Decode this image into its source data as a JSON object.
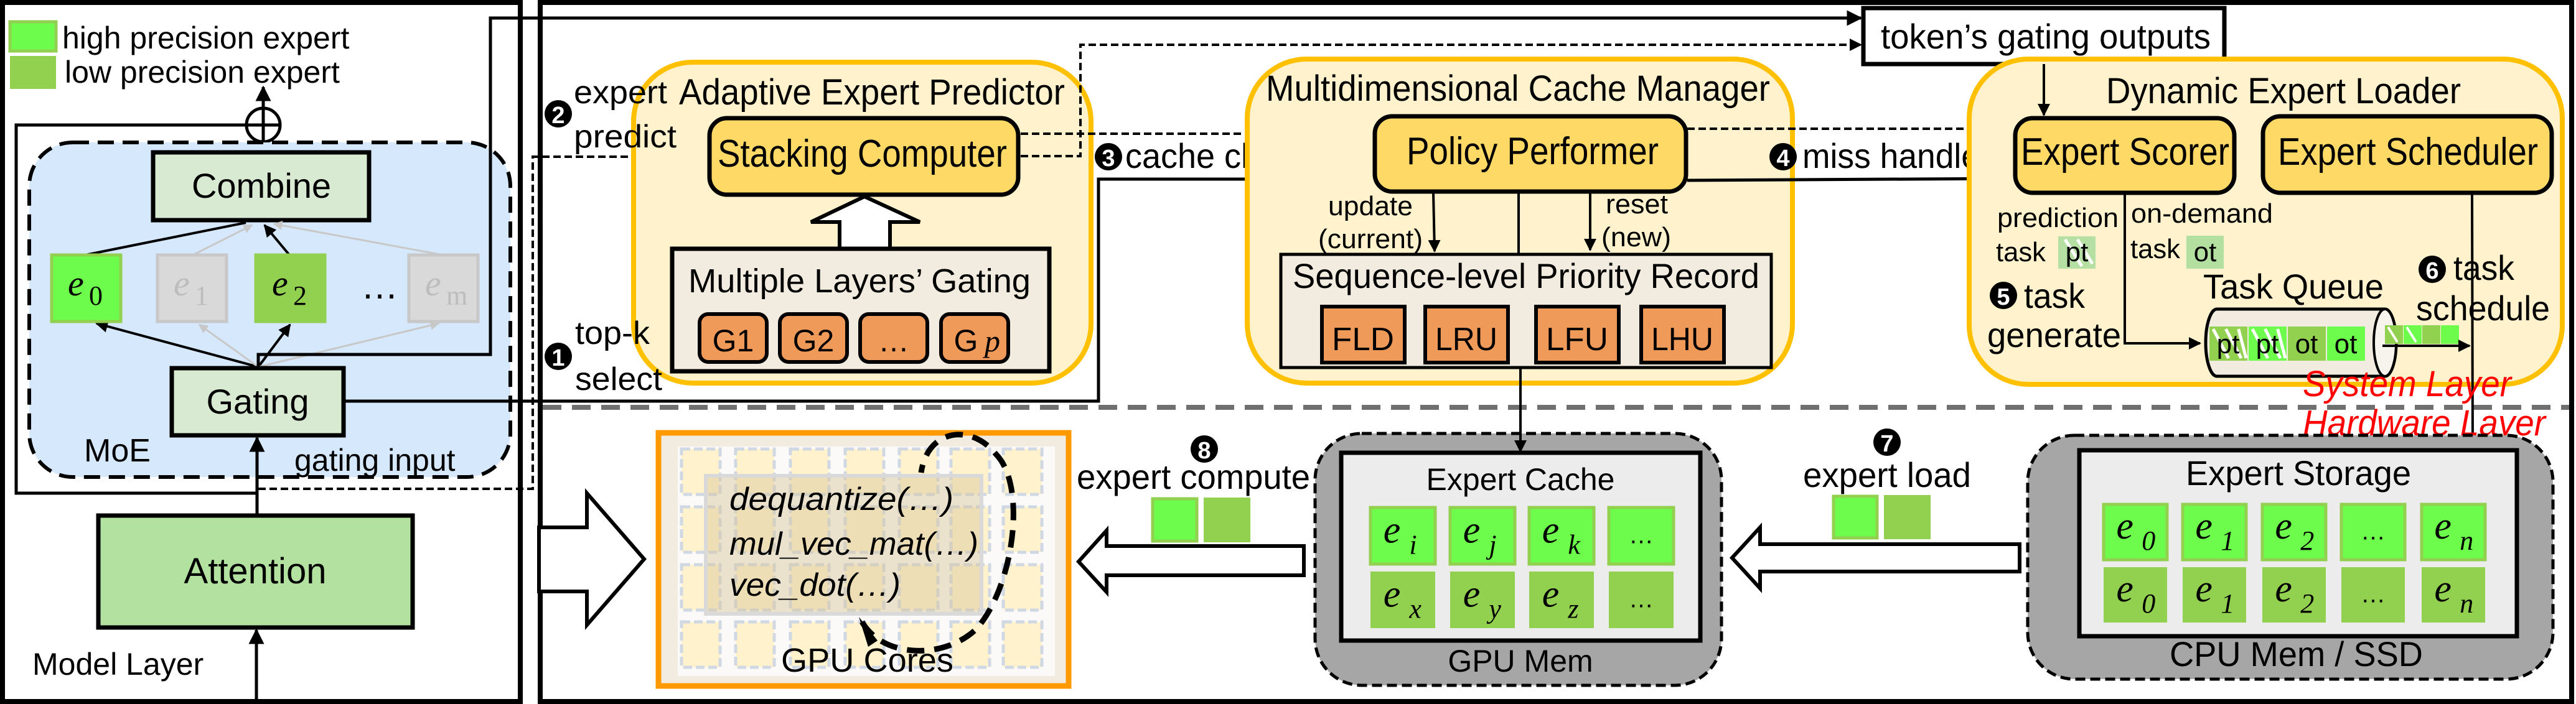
{
  "legend": {
    "high": "high precision expert",
    "low": "low precision expert"
  },
  "colors": {
    "high_precision": "#6dfc4b",
    "low_precision": "#92d050",
    "moe_fill": "#d6e8fb",
    "block_fill": "#d9ead3",
    "attention_fill": "#b3e2a0",
    "panel_fill": "#fff2cc",
    "panel_stroke": "#ffc000",
    "module_fill": "#ffd966",
    "record_fill": "#f2ece0",
    "policy_item_fill": "#f09a5a",
    "memory_fill": "#a6a6a6",
    "gpu_border": "#ff9900",
    "layer_label": "#ff0000"
  },
  "model_layer": {
    "title": "Model Layer",
    "moe": "MoE",
    "combine": "Combine",
    "gating": "Gating",
    "attention": "Attention",
    "gating_input": "gating input",
    "experts": [
      {
        "base": "e",
        "sub": "0",
        "state": "high"
      },
      {
        "base": "e",
        "sub": "1",
        "state": "inactive"
      },
      {
        "base": "e",
        "sub": "2",
        "state": "low"
      },
      {
        "base": "…",
        "sub": "",
        "state": "ellipsis"
      },
      {
        "base": "e",
        "sub": "m",
        "state": "inactive"
      }
    ]
  },
  "token_gating_outputs": "token’s gating outputs",
  "steps": {
    "s1": {
      "num": "1",
      "line1": "top-k",
      "line2": "select"
    },
    "s2": {
      "num": "2",
      "line1": "expert",
      "line2": "predict"
    },
    "s3": {
      "num": "3",
      "label": "cache check"
    },
    "s4": {
      "num": "4",
      "label": "miss handle"
    },
    "s5": {
      "num": "5",
      "line1": "task",
      "line2": "generate"
    },
    "s6": {
      "num": "6",
      "line1": "task",
      "line2": "schedule"
    },
    "s7": {
      "num": "7",
      "label": "expert load"
    },
    "s8": {
      "num": "8",
      "label": "expert compute"
    }
  },
  "predictor": {
    "title": "Adaptive Expert Predictor",
    "stacking": "Stacking Computer",
    "gating_box": "Multiple Layers’ Gating",
    "gates": [
      {
        "main": "G1",
        "suffix": ""
      },
      {
        "main": "G2",
        "suffix": ""
      },
      {
        "main": "…",
        "suffix": ""
      },
      {
        "main": "G",
        "suffix": "p"
      }
    ]
  },
  "cache_manager": {
    "title": "Multidimensional Cache Manager",
    "policy": "Policy Performer",
    "update": "update",
    "update_sub": "(current)",
    "reset": "reset",
    "reset_sub": "(new)",
    "record_title": "Sequence-level Priority Record",
    "policies": [
      "FLD",
      "LRU",
      "LFU",
      "LHU"
    ]
  },
  "loader": {
    "title": "Dynamic Expert Loader",
    "scorer": "Expert Scorer",
    "scheduler": "Expert Scheduler",
    "prediction": "prediction",
    "on_demand": "on-demand",
    "task": "task",
    "pt": "pt",
    "ot": "ot",
    "queue_title": "Task Queue",
    "queue": [
      {
        "label": "pt",
        "precision": "low"
      },
      {
        "label": "pt",
        "precision": "high"
      },
      {
        "label": "ot",
        "precision": "low"
      },
      {
        "label": "ot",
        "precision": "high"
      }
    ]
  },
  "layers": {
    "system": "System Layer",
    "hardware": "Hardware Layer"
  },
  "gpu_cores": {
    "title": "GPU Cores",
    "kernels": [
      "dequantize(…)",
      "mul_vec_mat(…)",
      "vec_dot(…)"
    ]
  },
  "expert_cache": {
    "title": "Expert Cache",
    "memory": "GPU Mem",
    "rows": [
      [
        {
          "base": "e",
          "sub": "i"
        },
        {
          "base": "e",
          "sub": "j"
        },
        {
          "base": "e",
          "sub": "k"
        },
        {
          "base": "…",
          "sub": ""
        }
      ],
      [
        {
          "base": "e",
          "sub": "x"
        },
        {
          "base": "e",
          "sub": "y"
        },
        {
          "base": "e",
          "sub": "z"
        },
        {
          "base": "…",
          "sub": ""
        }
      ]
    ]
  },
  "expert_storage": {
    "title": "Expert Storage",
    "memory": "CPU Mem / SSD",
    "rows": [
      [
        {
          "base": "e",
          "sub": "0"
        },
        {
          "base": "e",
          "sub": "1"
        },
        {
          "base": "e",
          "sub": "2"
        },
        {
          "base": "…",
          "sub": ""
        },
        {
          "base": "e",
          "sub": "n"
        }
      ],
      [
        {
          "base": "e",
          "sub": "0"
        },
        {
          "base": "e",
          "sub": "1"
        },
        {
          "base": "e",
          "sub": "2"
        },
        {
          "base": "…",
          "sub": ""
        },
        {
          "base": "e",
          "sub": "n"
        }
      ]
    ]
  }
}
